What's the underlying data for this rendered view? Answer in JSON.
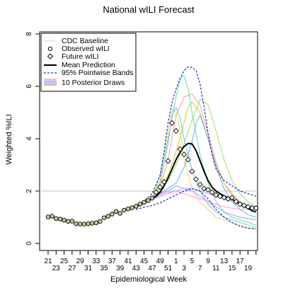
{
  "chart_data": {
    "type": "line",
    "title": "National wILI Forecast",
    "xlabel": "Epidemiological Week",
    "ylabel": "Weighted %ILI",
    "x_tick_labels": [
      "21",
      "25",
      "29",
      "33",
      "37",
      "41",
      "45",
      "49",
      "1",
      "5",
      "9",
      "13",
      "17"
    ],
    "x_tick_labels_offset": [
      "23",
      "27",
      "31",
      "35",
      "39",
      "43",
      "47",
      "51",
      "3",
      "7",
      "11",
      "15",
      "19"
    ],
    "ylim": [
      0,
      8
    ],
    "y_ticks": [
      0,
      2,
      4,
      6,
      8
    ],
    "baseline": 2.0,
    "legend": {
      "position": "top-left",
      "entries": [
        "CDC Baseline",
        "Observed wILI",
        "Future wILI",
        "Mean Prediction",
        "95% Pointwise Bands",
        "10 Posterior Draws"
      ]
    },
    "colors": {
      "baseline": "#cccccc",
      "mean": "#000000",
      "bands": "#0000cc",
      "observed_fill": "#c8c8a0",
      "draws": [
        "#ff9999",
        "#ffcc66",
        "#cccc33",
        "#99dd66",
        "#66dd99",
        "#66cccc",
        "#66aaff",
        "#9999ff",
        "#cc99ff",
        "#ff99cc"
      ]
    },
    "observed": {
      "week_index": [
        0,
        1,
        2,
        3,
        4,
        5,
        6,
        7,
        8,
        9,
        10,
        11,
        12,
        13,
        14,
        15,
        16,
        17,
        18,
        19,
        20,
        21,
        22,
        23,
        24,
        25,
        26
      ],
      "values": [
        1.01,
        1.04,
        0.95,
        0.93,
        0.89,
        0.84,
        0.85,
        0.75,
        0.74,
        0.74,
        0.75,
        0.77,
        0.79,
        0.84,
        0.98,
        1.04,
        1.12,
        1.22,
        1.15,
        1.27,
        1.32,
        1.36,
        1.42,
        1.5,
        1.57,
        1.64,
        1.73
      ]
    },
    "future": {
      "week_index": [
        27,
        28,
        29,
        30,
        31,
        32,
        33,
        34,
        35,
        36,
        37,
        38,
        39,
        40,
        41,
        42,
        43,
        44,
        45,
        46,
        47,
        48,
        49,
        50,
        51,
        52
      ],
      "values": [
        1.95,
        2.15,
        2.35,
        3.15,
        4.6,
        4.3,
        3.6,
        3.4,
        3.2,
        2.75,
        2.45,
        2.25,
        2.1,
        2.05,
        1.95,
        1.85,
        1.8,
        1.75,
        1.7,
        1.75,
        1.6,
        1.5,
        1.45,
        1.4,
        1.35,
        1.35
      ]
    },
    "mean_prediction": {
      "week_index": [
        22,
        23,
        24,
        25,
        26,
        27,
        28,
        29,
        30,
        31,
        32,
        33,
        34,
        35,
        36,
        37,
        38,
        39,
        40,
        41,
        42,
        43,
        44,
        45,
        46,
        47,
        48,
        49,
        50,
        51,
        52
      ],
      "values": [
        1.4,
        1.48,
        1.55,
        1.62,
        1.7,
        1.8,
        1.95,
        2.2,
        2.5,
        2.85,
        3.2,
        3.48,
        3.7,
        3.82,
        3.8,
        3.55,
        3.15,
        2.75,
        2.4,
        2.15,
        2.0,
        1.9,
        1.82,
        1.75,
        1.68,
        1.6,
        1.52,
        1.45,
        1.35,
        1.25,
        1.2
      ]
    },
    "bands_upper": {
      "week_index": [
        22,
        24,
        26,
        28,
        29,
        30,
        31,
        32,
        33,
        34,
        35,
        36,
        37,
        38,
        39,
        40,
        41,
        42,
        44,
        46,
        48,
        50,
        52
      ],
      "values": [
        1.45,
        1.62,
        1.9,
        2.6,
        3.5,
        4.6,
        5.4,
        5.9,
        6.3,
        6.6,
        6.75,
        6.72,
        6.6,
        6.1,
        5.2,
        4.2,
        3.4,
        2.85,
        2.4,
        2.2,
        2.0,
        1.9,
        1.8
      ]
    },
    "bands_lower": {
      "week_index": [
        22,
        24,
        26,
        28,
        30,
        32,
        34,
        36,
        38,
        40,
        42,
        44,
        46,
        48,
        50,
        52
      ],
      "values": [
        1.3,
        1.38,
        1.45,
        1.55,
        1.7,
        1.85,
        2.0,
        2.1,
        2.0,
        1.7,
        1.3,
        1.0,
        0.8,
        0.65,
        0.58,
        0.55
      ]
    },
    "posterior_draws": [
      {
        "week_index": [
          26,
          28,
          30,
          32,
          34,
          36,
          38,
          40,
          42,
          44,
          46,
          48,
          50,
          52
        ],
        "values": [
          1.7,
          2.2,
          3.2,
          4.9,
          5.6,
          5.7,
          5.3,
          4.2,
          3.1,
          2.3,
          1.9,
          1.6,
          1.4,
          1.3
        ]
      },
      {
        "week_index": [
          26,
          28,
          30,
          31,
          32,
          33,
          34,
          36,
          38,
          40,
          42,
          44,
          46,
          48,
          50,
          52
        ],
        "values": [
          1.7,
          2.4,
          4.3,
          5.1,
          5.0,
          4.3,
          3.2,
          2.1,
          1.6,
          1.3,
          1.0,
          0.9,
          0.8,
          0.7,
          0.6,
          0.55
        ]
      },
      {
        "week_index": [
          26,
          28,
          30,
          32,
          34,
          35,
          36,
          38,
          40,
          42,
          44,
          46,
          48,
          50,
          52
        ],
        "values": [
          1.7,
          2.1,
          2.6,
          3.5,
          4.6,
          5.2,
          5.4,
          5.0,
          4.0,
          3.0,
          2.3,
          1.8,
          1.5,
          1.3,
          1.2
        ]
      },
      {
        "week_index": [
          26,
          28,
          30,
          32,
          34,
          36,
          38,
          40,
          42,
          44,
          46,
          48,
          50,
          52
        ],
        "values": [
          1.7,
          2.0,
          2.4,
          3.0,
          3.8,
          4.7,
          5.5,
          5.3,
          4.3,
          3.2,
          2.4,
          1.9,
          1.6,
          1.4
        ]
      },
      {
        "week_index": [
          26,
          28,
          30,
          32,
          33,
          34,
          35,
          36,
          38,
          40,
          42,
          44,
          46,
          48,
          50,
          52
        ],
        "values": [
          1.7,
          2.6,
          4.0,
          5.6,
          6.3,
          6.4,
          5.9,
          5.0,
          3.4,
          2.3,
          1.6,
          1.2,
          1.0,
          0.9,
          0.8,
          0.7
        ]
      },
      {
        "week_index": [
          26,
          28,
          30,
          31,
          32,
          33,
          34,
          36,
          38,
          40,
          42,
          44,
          46,
          48,
          50,
          52
        ],
        "values": [
          1.7,
          2.3,
          3.8,
          4.9,
          5.2,
          4.8,
          4.0,
          2.8,
          2.0,
          1.5,
          1.2,
          1.0,
          0.9,
          0.8,
          0.7,
          0.6
        ]
      },
      {
        "week_index": [
          26,
          28,
          30,
          32,
          34,
          36,
          37,
          38,
          40,
          42,
          44,
          46,
          48,
          50,
          52
        ],
        "values": [
          1.7,
          1.9,
          2.1,
          2.3,
          2.9,
          3.9,
          4.6,
          4.9,
          4.0,
          2.9,
          2.1,
          1.6,
          1.3,
          1.1,
          1.0
        ]
      },
      {
        "week_index": [
          26,
          28,
          30,
          32,
          34,
          36,
          38,
          40,
          42,
          44,
          46,
          48,
          50,
          52
        ],
        "values": [
          1.7,
          1.9,
          2.0,
          2.2,
          2.1,
          2.0,
          1.8,
          1.6,
          1.4,
          1.2,
          1.1,
          1.0,
          0.95,
          0.9
        ]
      },
      {
        "week_index": [
          26,
          28,
          30,
          32,
          34,
          36,
          38,
          40,
          42,
          44,
          46,
          48,
          50,
          52
        ],
        "values": [
          1.7,
          1.8,
          1.9,
          2.0,
          2.1,
          2.1,
          2.0,
          1.9,
          1.8,
          1.7,
          1.6,
          1.5,
          1.45,
          1.4
        ]
      },
      {
        "week_index": [
          26,
          28,
          30,
          32,
          34,
          36,
          38,
          40,
          42,
          44,
          46,
          48,
          50,
          52
        ],
        "values": [
          1.7,
          1.85,
          1.95,
          2.0,
          1.9,
          1.8,
          1.7,
          1.6,
          1.5,
          1.4,
          1.35,
          1.3,
          1.3,
          1.3
        ]
      }
    ]
  }
}
